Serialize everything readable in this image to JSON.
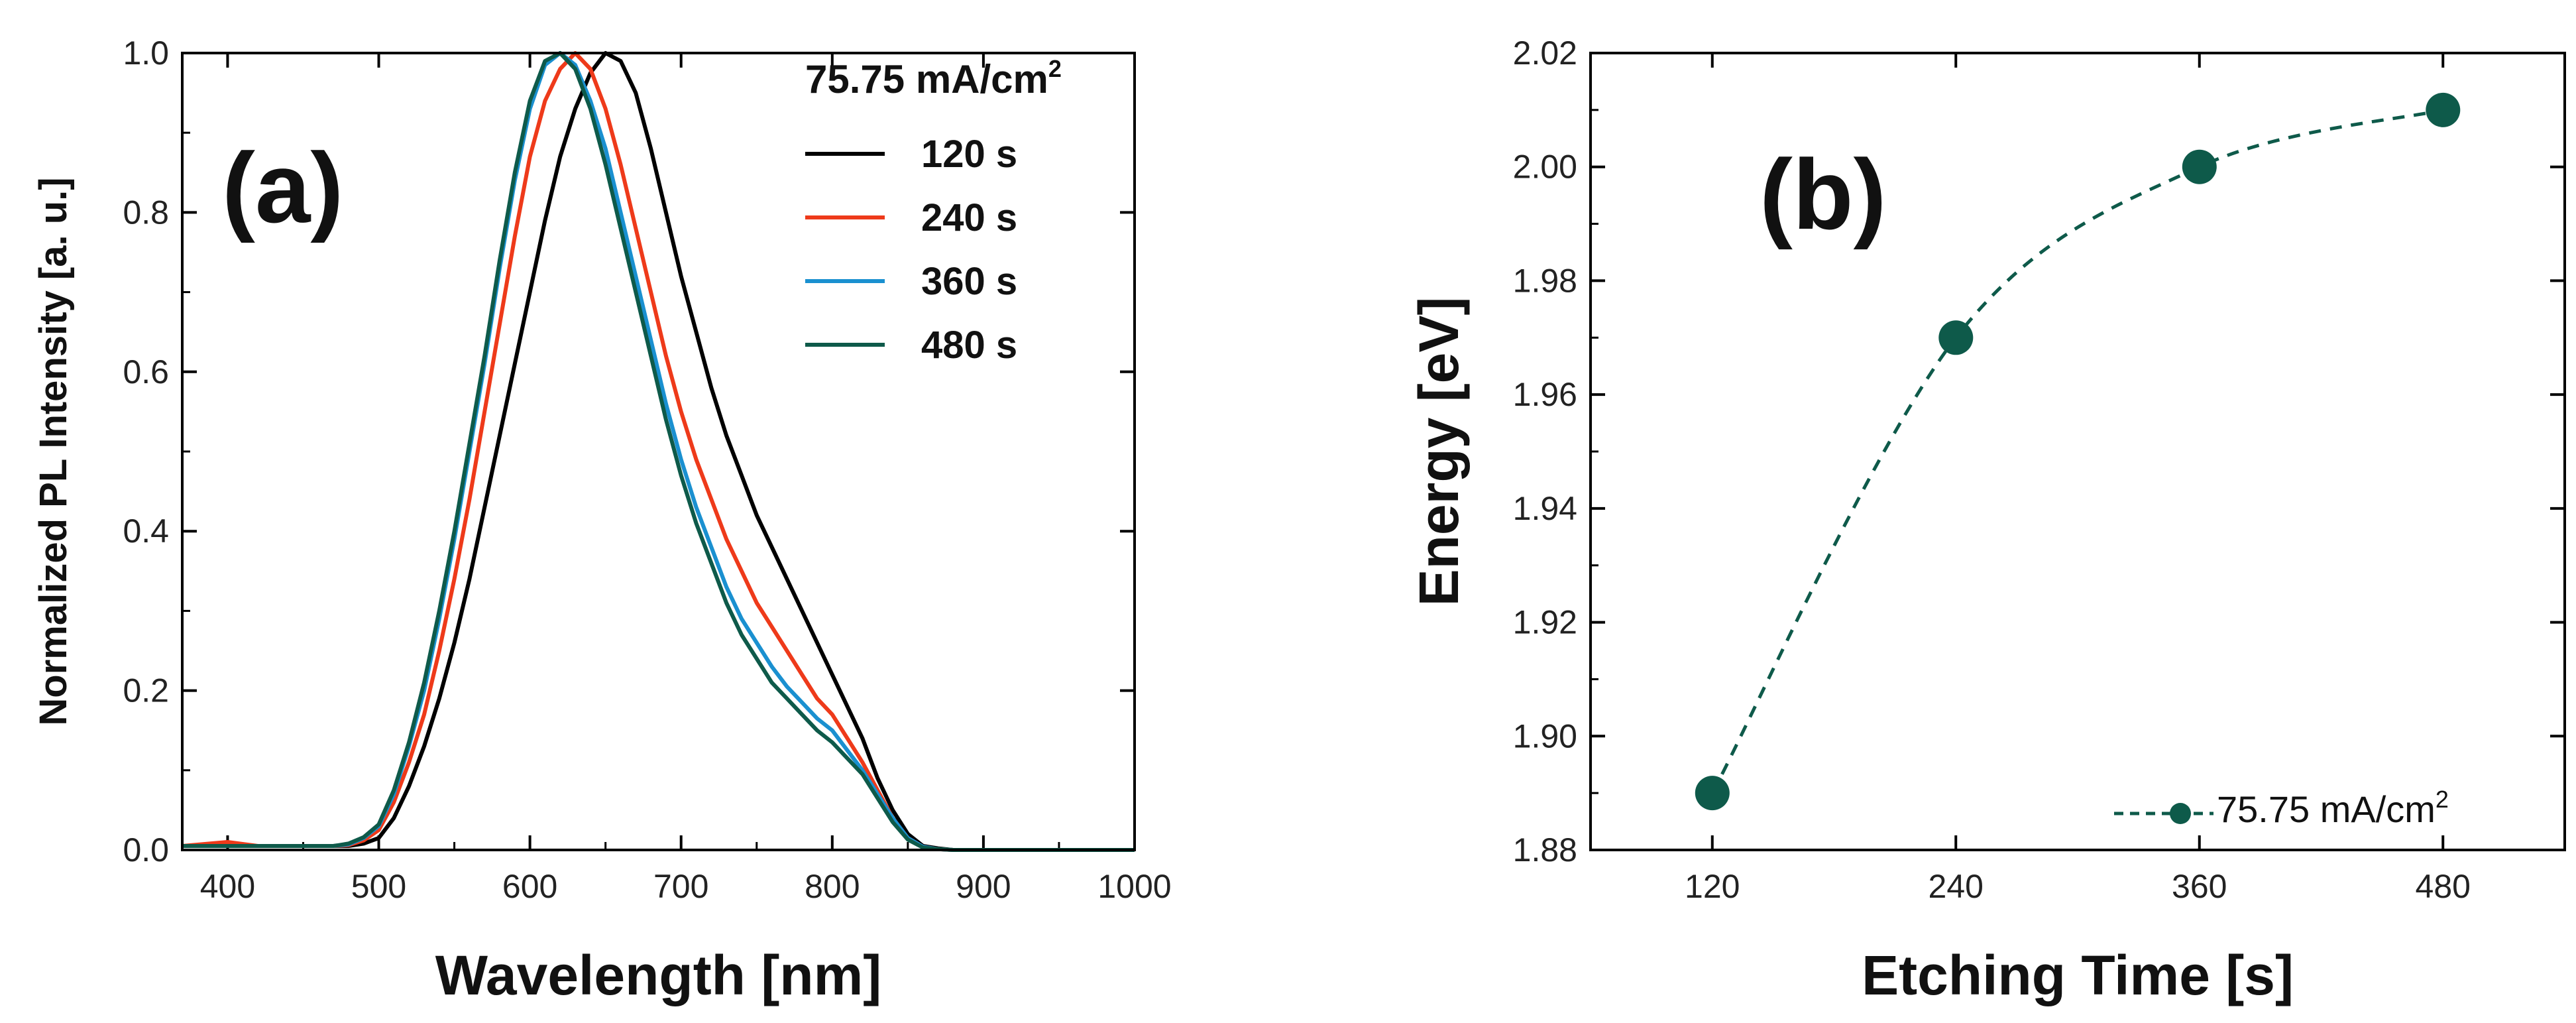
{
  "chart_data": [
    {
      "panel": "(a)",
      "type": "line",
      "title": "",
      "xlabel": "Wavelength [nm]",
      "ylabel": "Normalized PL Intensity [a. u.]",
      "xlim": [
        370,
        1000
      ],
      "ylim": [
        0,
        1.0
      ],
      "xticks": [
        400,
        500,
        600,
        700,
        800,
        900,
        1000
      ],
      "yticks": [
        0.0,
        0.2,
        0.4,
        0.6,
        0.8,
        1.0
      ],
      "ytick_labels": [
        "0.0",
        "0.2",
        "0.4",
        "0.6",
        "0.8",
        "1.0"
      ],
      "legend_title": "75.75 mA/cm",
      "legend_title_sup": "2",
      "x": [
        370,
        400,
        420,
        450,
        470,
        480,
        490,
        500,
        510,
        520,
        530,
        540,
        550,
        560,
        570,
        580,
        590,
        600,
        610,
        620,
        630,
        640,
        650,
        660,
        670,
        680,
        690,
        700,
        710,
        720,
        730,
        740,
        750,
        760,
        770,
        780,
        790,
        800,
        810,
        820,
        830,
        840,
        850,
        860,
        870,
        880,
        900,
        950,
        1000
      ],
      "series": [
        {
          "name": "120 s",
          "color": "#000000",
          "values": [
            0.005,
            0.005,
            0.005,
            0.005,
            0.005,
            0.005,
            0.008,
            0.015,
            0.04,
            0.08,
            0.13,
            0.19,
            0.26,
            0.34,
            0.43,
            0.52,
            0.61,
            0.7,
            0.79,
            0.87,
            0.93,
            0.975,
            1.0,
            0.99,
            0.95,
            0.88,
            0.8,
            0.72,
            0.65,
            0.58,
            0.52,
            0.47,
            0.42,
            0.38,
            0.34,
            0.3,
            0.26,
            0.22,
            0.18,
            0.14,
            0.09,
            0.05,
            0.02,
            0.005,
            0.002,
            0.0,
            0.0,
            0.0,
            0.0
          ]
        },
        {
          "name": "240 s",
          "color": "#ee3a1a",
          "values": [
            0.005,
            0.01,
            0.005,
            0.005,
            0.005,
            0.006,
            0.012,
            0.025,
            0.06,
            0.11,
            0.17,
            0.25,
            0.34,
            0.44,
            0.55,
            0.66,
            0.77,
            0.87,
            0.94,
            0.98,
            1.0,
            0.98,
            0.93,
            0.86,
            0.78,
            0.7,
            0.62,
            0.55,
            0.49,
            0.44,
            0.39,
            0.35,
            0.31,
            0.28,
            0.25,
            0.22,
            0.19,
            0.17,
            0.14,
            0.11,
            0.075,
            0.04,
            0.015,
            0.004,
            0.001,
            0.0,
            0.0,
            0.0,
            0.0
          ]
        },
        {
          "name": "360 s",
          "color": "#1a90d0",
          "values": [
            0.005,
            0.005,
            0.005,
            0.005,
            0.005,
            0.007,
            0.015,
            0.03,
            0.07,
            0.13,
            0.2,
            0.29,
            0.39,
            0.5,
            0.61,
            0.73,
            0.84,
            0.93,
            0.985,
            1.0,
            0.985,
            0.94,
            0.88,
            0.8,
            0.72,
            0.64,
            0.56,
            0.49,
            0.43,
            0.38,
            0.33,
            0.29,
            0.26,
            0.23,
            0.205,
            0.185,
            0.165,
            0.15,
            0.125,
            0.1,
            0.07,
            0.04,
            0.015,
            0.004,
            0.001,
            0.0,
            0.0,
            0.0,
            0.0
          ]
        },
        {
          "name": "480 s",
          "color": "#0e5a4a",
          "values": [
            0.005,
            0.005,
            0.005,
            0.005,
            0.005,
            0.008,
            0.016,
            0.032,
            0.075,
            0.135,
            0.21,
            0.3,
            0.4,
            0.51,
            0.62,
            0.74,
            0.85,
            0.94,
            0.99,
            1.0,
            0.98,
            0.93,
            0.86,
            0.78,
            0.7,
            0.62,
            0.54,
            0.47,
            0.41,
            0.36,
            0.31,
            0.27,
            0.24,
            0.21,
            0.19,
            0.17,
            0.15,
            0.135,
            0.115,
            0.095,
            0.065,
            0.035,
            0.013,
            0.003,
            0.001,
            0.0,
            0.0,
            0.0,
            0.0
          ]
        }
      ]
    },
    {
      "panel": "(b)",
      "type": "scatter",
      "title": "",
      "xlabel": "Etching Time [s]",
      "ylabel": "Energy [eV]",
      "xlim": [
        60,
        540
      ],
      "ylim": [
        1.88,
        2.02
      ],
      "xticks": [
        120,
        240,
        360,
        480
      ],
      "yticks": [
        1.88,
        1.9,
        1.92,
        1.94,
        1.96,
        1.98,
        2.0,
        2.02
      ],
      "ytick_labels": [
        "1.88",
        "1.90",
        "1.92",
        "1.94",
        "1.96",
        "1.98",
        "2.00",
        "2.02"
      ],
      "x": [
        120,
        240,
        360,
        480
      ],
      "series": [
        {
          "name": "75.75 mA/cm",
          "name_sup": "2",
          "color": "#0e5a4a",
          "line_style": "dashed",
          "values": [
            1.89,
            1.97,
            2.0,
            2.01
          ]
        }
      ]
    }
  ]
}
